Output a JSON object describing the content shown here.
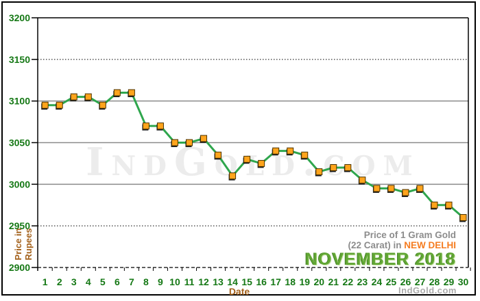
{
  "chart_data": {
    "type": "line",
    "title": "Price of 1 Gram Gold (22 Carat) in NEW DELHI - NOVEMBER 2018",
    "xlabel": "Date",
    "ylabel": "Price in Rupees",
    "x": [
      1,
      2,
      3,
      4,
      5,
      6,
      7,
      8,
      9,
      10,
      11,
      12,
      13,
      14,
      15,
      16,
      17,
      18,
      19,
      20,
      21,
      22,
      23,
      24,
      25,
      26,
      27,
      28,
      29,
      30
    ],
    "values": [
      3095,
      3095,
      3105,
      3105,
      3095,
      3110,
      3110,
      3070,
      3070,
      3050,
      3050,
      3055,
      3035,
      3010,
      3030,
      3025,
      3040,
      3040,
      3035,
      3015,
      3020,
      3020,
      3005,
      2995,
      2995,
      2990,
      2995,
      2975,
      2975,
      2960
    ],
    "ylim": [
      2900,
      3200
    ],
    "yticks": [
      2900,
      2950,
      3000,
      3050,
      3100,
      3150,
      3200
    ],
    "grid": "horizontal",
    "legend": "none",
    "series_name": "Gold price per 1 gram (22 carat), Rupees",
    "line_color": "#2fa64d",
    "marker": "square",
    "marker_color": "#ffa41c"
  },
  "labels": {
    "y_axis_line1": "Price in",
    "y_axis_line2": "Rupees",
    "x_axis": "Date"
  },
  "title_block": {
    "line1": "Price of 1 Gram Gold",
    "line2_prefix": "(22 Carat) in",
    "line2_city": "NEW DELHI",
    "line3": "NOVEMBER 2018"
  },
  "branding": {
    "watermark": "IndGold.com",
    "footer": "IndGold.com"
  },
  "colors": {
    "axis_tick_green": "#157815",
    "axis_title_brown": "#a3601a",
    "city_orange": "#f57c20",
    "title_gray": "#8c8c8c",
    "month_green": "#61a634",
    "line_green": "#2fa64d",
    "marker_orange": "#ffa41c",
    "gridline_gray": "#8a8a8a"
  }
}
